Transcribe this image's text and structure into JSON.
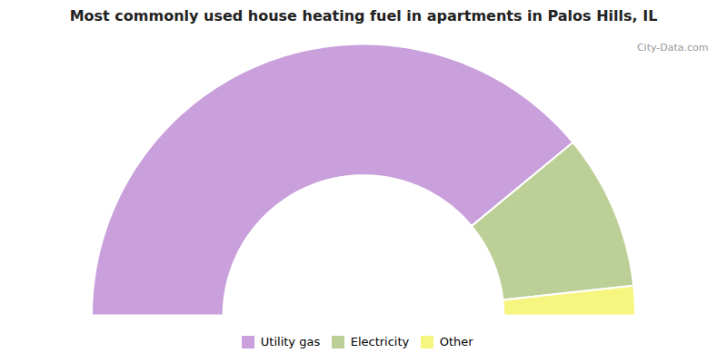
{
  "chart_data": {
    "type": "donut",
    "title": "Most commonly used house heating fuel in apartments in Palos Hills, IL",
    "categories": [
      "Utility gas",
      "Electricity",
      "Other"
    ],
    "values": [
      78.0,
      18.5,
      3.5
    ],
    "colors": [
      "#c9a0dc",
      "#bccf96",
      "#f5f580"
    ],
    "legend": "bottom",
    "annotations": [
      "City-Data.com"
    ]
  }
}
